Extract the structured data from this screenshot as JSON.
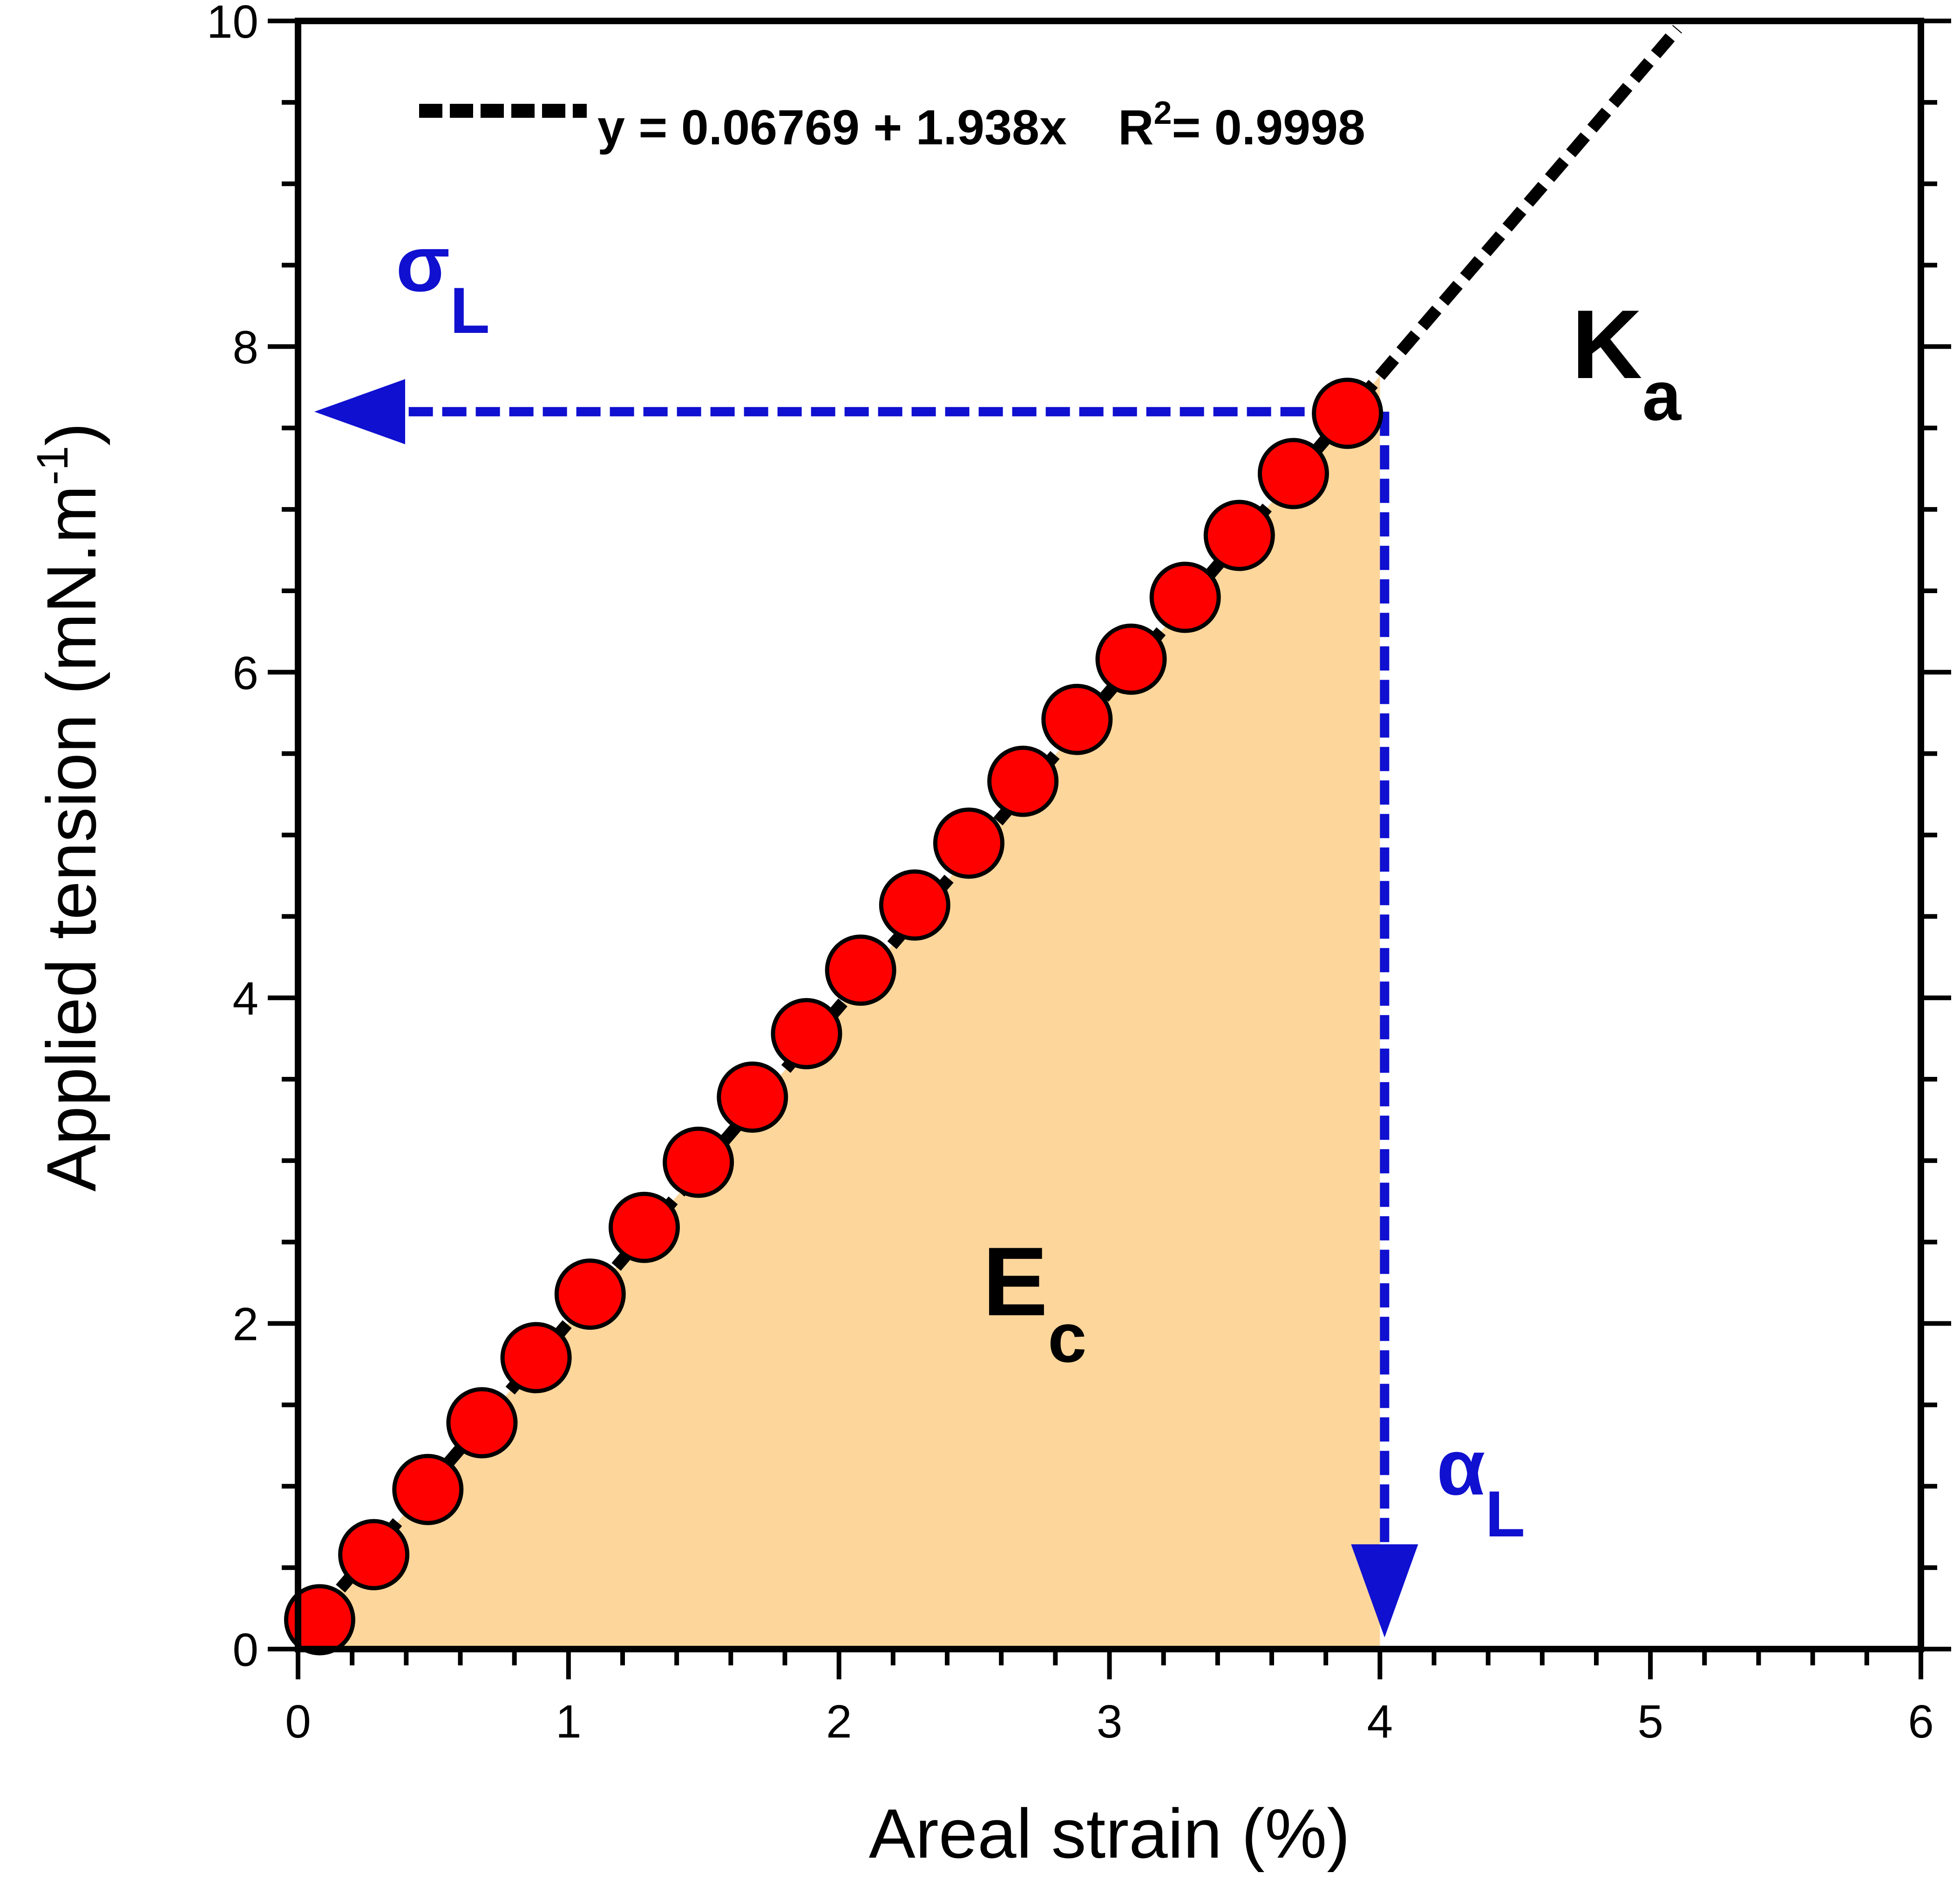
{
  "chart_data": {
    "type": "scatter",
    "xlabel": "Areal strain (%)",
    "ylabel_main": "Applied tension (mN.m",
    "ylabel_sup": "-1",
    "ylabel_close": ")",
    "xlim": [
      0,
      6
    ],
    "ylim": [
      0,
      10
    ],
    "x_ticks": [
      "0",
      "1",
      "2",
      "3",
      "4",
      "5",
      "6"
    ],
    "y_ticks": [
      "0",
      "2",
      "4",
      "6",
      "8",
      "10"
    ],
    "series": [
      {
        "x": [
          0.08,
          0.28,
          0.48,
          0.68,
          0.88,
          1.08,
          1.28,
          1.48,
          1.68,
          1.88,
          2.08,
          2.28,
          2.48,
          2.68,
          2.88,
          3.08,
          3.28,
          3.48,
          3.68,
          3.88
        ],
        "y": [
          0.18,
          0.58,
          0.98,
          1.39,
          1.79,
          2.18,
          2.59,
          2.99,
          3.39,
          3.78,
          4.17,
          4.57,
          4.95,
          5.33,
          5.71,
          6.08,
          6.46,
          6.84,
          7.22,
          7.59
        ],
        "color": "#ff0000"
      }
    ],
    "fit": {
      "intercept": 0.06769,
      "slope": 1.938,
      "x_range": [
        0,
        5.1
      ],
      "label": "y = 0.06769 + 1.938x",
      "r2_prefix": "R",
      "r2_sup": "2",
      "r2_value": "= 0.9998"
    },
    "shaded_region": {
      "x_end": 4.0,
      "color": "#fdd69b"
    },
    "sigma_L": {
      "symbol": "σ",
      "sub": "L",
      "y": 7.6
    },
    "alpha_L": {
      "symbol": "α",
      "sub": "L",
      "x": 4.0
    },
    "annotations": {
      "Ka": {
        "main": "K",
        "sub": "a"
      },
      "Ec": {
        "main": "E",
        "sub": "c"
      }
    },
    "arrow_color": "#1010d0",
    "grid": false
  }
}
